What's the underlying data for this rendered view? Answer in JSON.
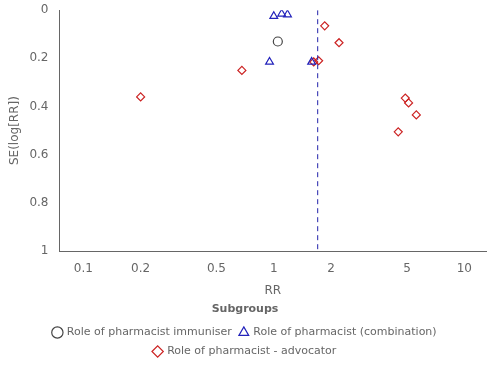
{
  "chart_data": {
    "type": "scatter",
    "xlabel": "RR",
    "ylabel": "SE(log[RR])",
    "log": "x",
    "grid": false,
    "legend": "bottom",
    "legend_title": "Subgroups",
    "xlim": [
      0.075,
      13.0
    ],
    "xticks": [
      0.1,
      0.2,
      0.5,
      1,
      2,
      5,
      10
    ],
    "ylim": [
      1.0,
      0.0
    ],
    "yticks": [
      0,
      0.2,
      0.4,
      0.6,
      0.8,
      1
    ],
    "reference_line": {
      "x": 1.7,
      "color": "#2222aa",
      "line_style": "dashed"
    },
    "series": [
      {
        "name": "Role of pharmacist immuniser",
        "color": "#444444",
        "marker": "circle",
        "x": [
          1.05
        ],
        "values": [
          0.13
        ]
      },
      {
        "name": "Role of pharmacist (combination)",
        "color": "#2222bb",
        "marker": "triangle",
        "x": [
          1.0,
          1.1,
          1.18,
          0.95,
          1.58
        ],
        "values": [
          0.025,
          0.015,
          0.018,
          0.215,
          0.215
        ]
      },
      {
        "name": "Role of pharmacist - advocator",
        "color": "#cc2222",
        "marker": "diamond",
        "x": [
          0.68,
          0.2,
          1.85,
          2.2,
          1.62,
          1.72,
          5.1,
          5.6,
          4.9,
          4.5
        ],
        "values": [
          0.25,
          0.36,
          0.065,
          0.135,
          0.215,
          0.21,
          0.385,
          0.435,
          0.365,
          0.505
        ]
      }
    ]
  }
}
